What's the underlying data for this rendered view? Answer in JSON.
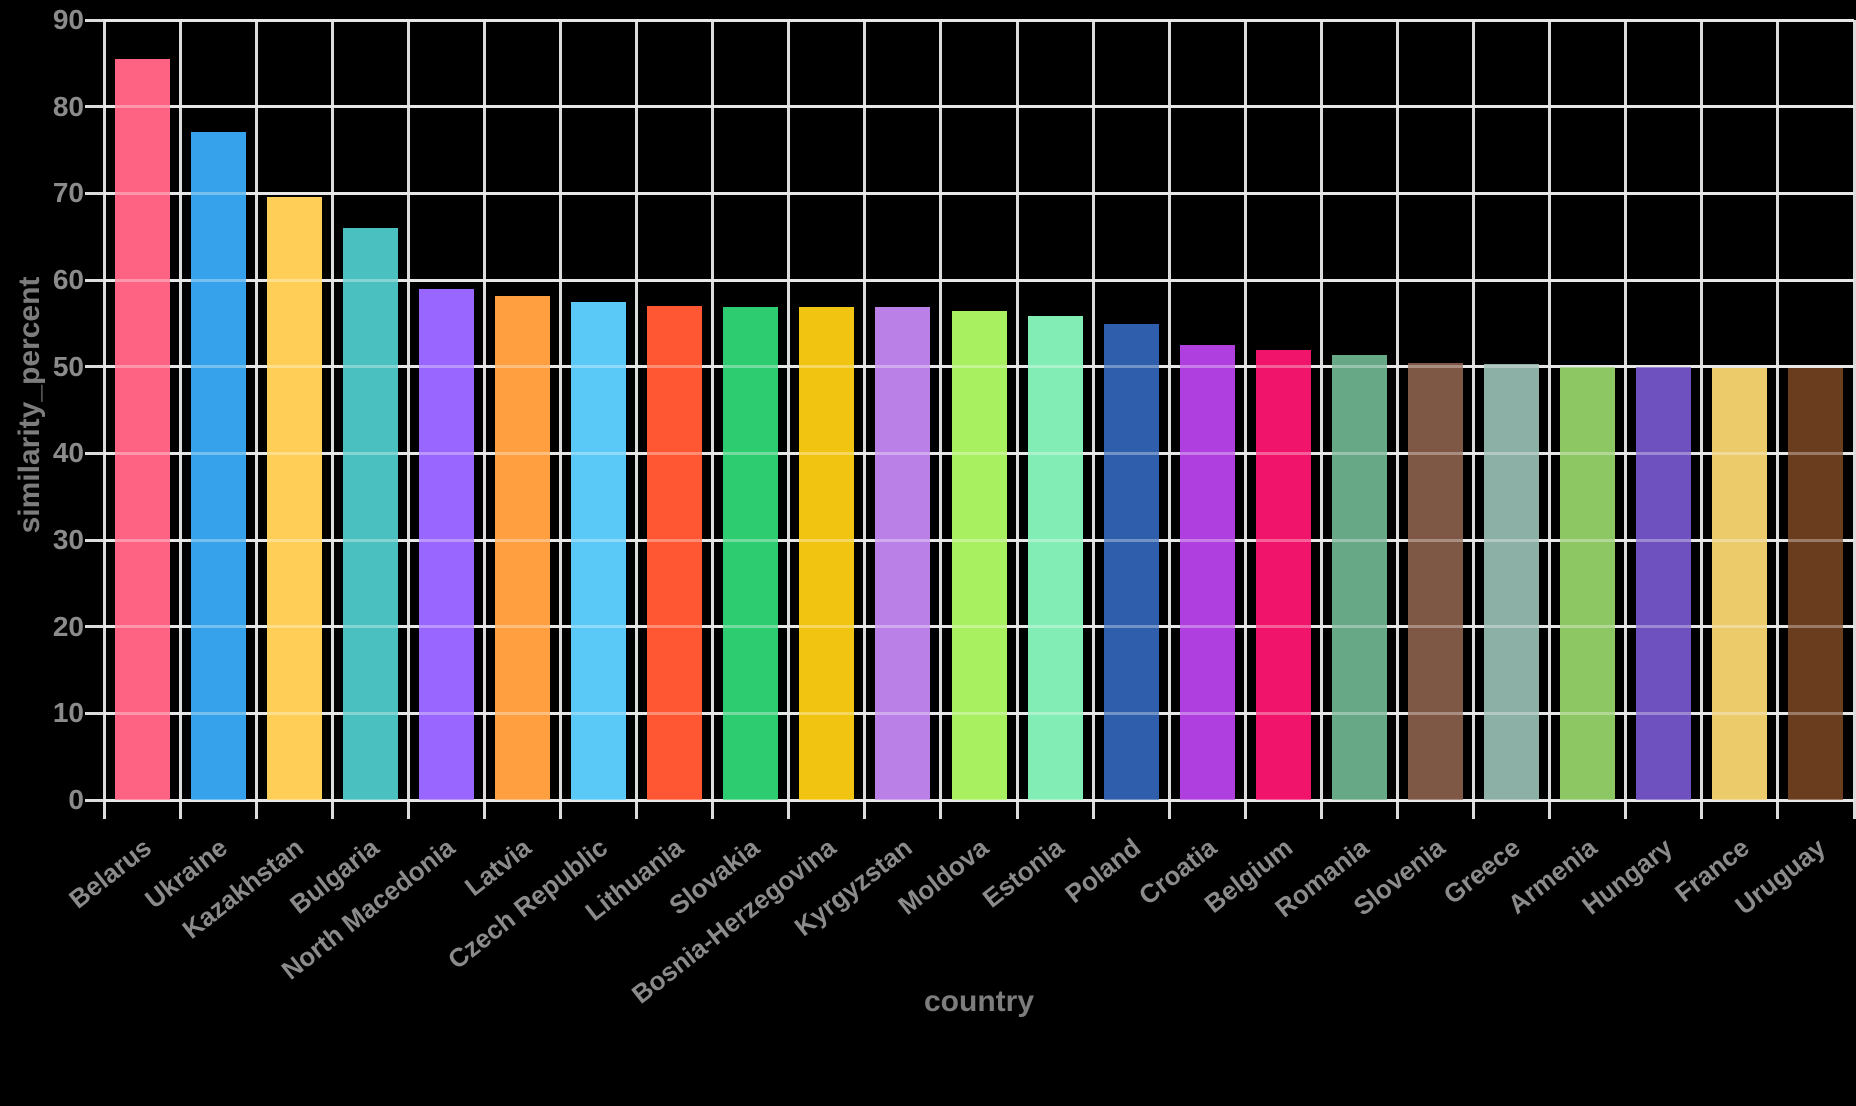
{
  "chart_data": {
    "type": "bar",
    "title": "",
    "xlabel": "country",
    "ylabel": "similarity_percent",
    "ylim": [
      0,
      90
    ],
    "yticks": [
      0,
      10,
      20,
      30,
      40,
      50,
      60,
      70,
      80,
      90
    ],
    "grid": true,
    "legend": false,
    "background_color": "#000000",
    "gridline_color": "#dcdcdc",
    "tick_label_color": "#8b8b8b",
    "axis_label_color": "#7d7d7d",
    "categories": [
      "Belarus",
      "Ukraine",
      "Kazakhstan",
      "Bulgaria",
      "North Macedonia",
      "Latvia",
      "Czech Republic",
      "Lithuania",
      "Slovakia",
      "Bosnia-Herzegovina",
      "Kyrgyzstan",
      "Moldova",
      "Estonia",
      "Poland",
      "Croatia",
      "Belgium",
      "Romania",
      "Slovenia",
      "Greece",
      "Armenia",
      "Hungary",
      "France",
      "Uruguay"
    ],
    "values": [
      85.5,
      77.1,
      69.6,
      66.0,
      59.0,
      58.1,
      57.5,
      57.0,
      56.9,
      56.9,
      56.9,
      56.4,
      55.9,
      54.9,
      52.5,
      51.9,
      51.4,
      50.4,
      50.3,
      50.0,
      50.0,
      49.9,
      49.9
    ],
    "bar_colors": [
      "#FF6384",
      "#36A2EB",
      "#FFCE56",
      "#4BC0C0",
      "#9966FF",
      "#FF9F40",
      "#5BC9F8",
      "#FF5733",
      "#2ECC71",
      "#F0C411",
      "#BB80E8",
      "#A8F05F",
      "#82EDB5",
      "#2F5FAC",
      "#AF3FDE",
      "#F1146B",
      "#67A886",
      "#7F5845",
      "#8CB0A5",
      "#8CC763",
      "#6E51BE",
      "#ECCB6B",
      "#6A3D1F"
    ]
  }
}
